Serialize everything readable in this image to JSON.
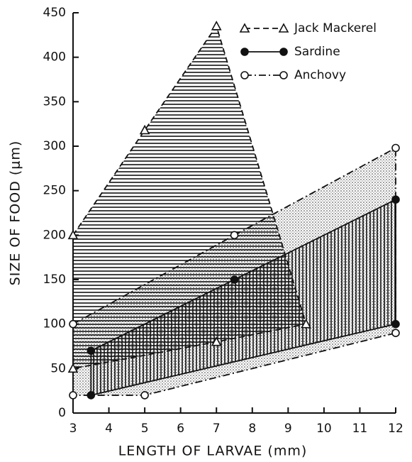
{
  "chart_data": {
    "type": "range-polygon",
    "xlabel": "LENGTH OF LARVAE (mm)",
    "ylabel": "SIZE OF FOOD (μm)",
    "xlim": [
      3,
      12
    ],
    "ylim": [
      0,
      450
    ],
    "xticks": [
      3,
      4,
      5,
      6,
      7,
      8,
      9,
      10,
      11,
      12
    ],
    "yticks": [
      0,
      50,
      100,
      150,
      200,
      250,
      300,
      350,
      400,
      450
    ],
    "legend": "upper right",
    "series": [
      {
        "name": "Anchovy",
        "color": "#111111",
        "linestyle": "dashdot",
        "marker": "open-circle",
        "fill": "stipple",
        "x": [
          3,
          7.5,
          12,
          12,
          5,
          3
        ],
        "y": [
          100,
          200,
          298,
          90,
          20,
          20
        ]
      },
      {
        "name": "Sardine",
        "color": "#111111",
        "linestyle": "solid",
        "marker": "filled-circle",
        "fill": "vertical",
        "x": [
          3.5,
          7.5,
          12,
          12,
          3.5
        ],
        "y": [
          70,
          150,
          240,
          100,
          20
        ]
      },
      {
        "name": "Jack Mackerel",
        "color": "#111111",
        "linestyle": "dashed",
        "marker": "open-triangle",
        "fill": "horizontal",
        "x": [
          3,
          5,
          7,
          9.5,
          7,
          3
        ],
        "y": [
          200,
          318,
          435,
          100,
          80,
          50
        ]
      }
    ]
  }
}
